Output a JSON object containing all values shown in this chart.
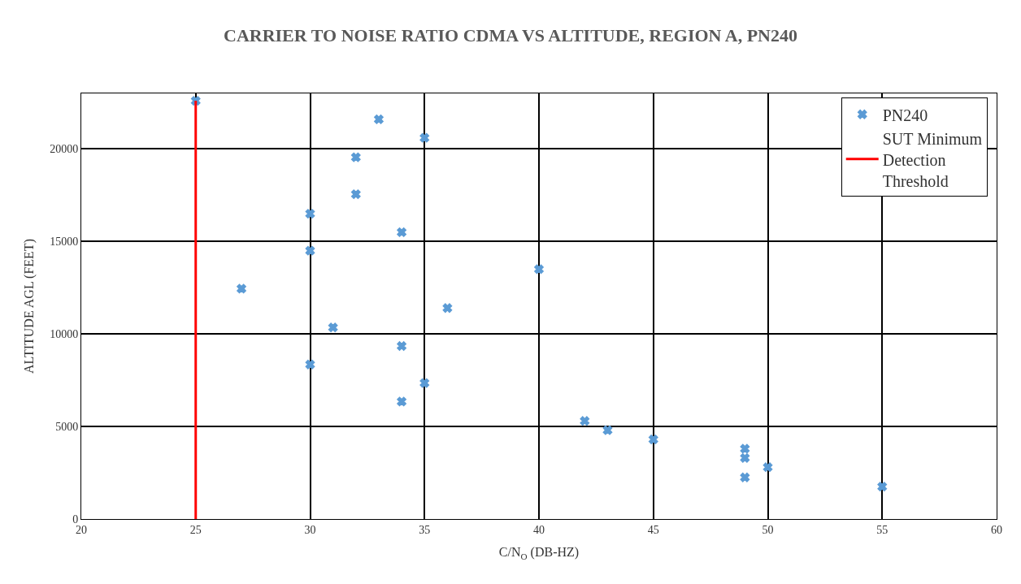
{
  "chart_data": {
    "type": "scatter",
    "title": "CARRIER TO NOISE RATIO CDMA VS ALTITUDE, REGION A, PN240",
    "xlabel": "C/N$_{O}$ (DB-HZ)",
    "ylabel": "ALTITUDE AGL (FEET)",
    "xlim": [
      20,
      60
    ],
    "xticks": [
      20,
      25,
      30,
      35,
      40,
      45,
      50,
      55,
      60
    ],
    "ylim": [
      0,
      23000
    ],
    "yticks": [
      0,
      5000,
      10000,
      15000,
      20000
    ],
    "grid": true,
    "legend": "top right",
    "series": [
      {
        "name": "PN240",
        "marker": "cross",
        "color": "#5b9bd5",
        "x": [
          25,
          33,
          35,
          32,
          32,
          30,
          34,
          30,
          40,
          27,
          36,
          31,
          34,
          30,
          35,
          34,
          42,
          43,
          45,
          49,
          49,
          49,
          50,
          55
        ],
        "values": [
          22600,
          21600,
          20600,
          19550,
          17550,
          16500,
          15500,
          14500,
          13500,
          12450,
          11400,
          10350,
          9350,
          8350,
          7350,
          6350,
          5300,
          4800,
          4300,
          3800,
          3300,
          2250,
          2800,
          1750
        ]
      },
      {
        "name": "SUT Minimum Detection Threshold",
        "type": "line",
        "marker": "none",
        "line_style": "solid",
        "color": "#ff0000",
        "x": [
          25,
          25
        ],
        "values": [
          0,
          22600
        ]
      }
    ]
  }
}
